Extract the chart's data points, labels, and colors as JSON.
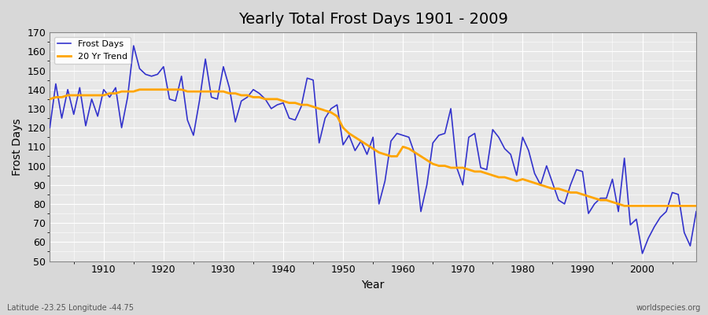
{
  "title": "Yearly Total Frost Days 1901 - 2009",
  "xlabel": "Year",
  "ylabel": "Frost Days",
  "subtitle": "Latitude -23.25 Longitude -44.75",
  "watermark": "worldspecies.org",
  "ylim": [
    50,
    170
  ],
  "yticks": [
    50,
    60,
    70,
    80,
    90,
    100,
    110,
    120,
    130,
    140,
    150,
    160,
    170
  ],
  "frost_color": "#3333cc",
  "trend_color": "#FFA500",
  "bg_color": "#d8d8d8",
  "plot_bg_color": "#e8e8e8",
  "grid_color": "#ffffff",
  "years": [
    1901,
    1902,
    1903,
    1904,
    1905,
    1906,
    1907,
    1908,
    1909,
    1910,
    1911,
    1912,
    1913,
    1914,
    1915,
    1916,
    1917,
    1918,
    1919,
    1920,
    1921,
    1922,
    1923,
    1924,
    1925,
    1926,
    1927,
    1928,
    1929,
    1930,
    1931,
    1932,
    1933,
    1934,
    1935,
    1936,
    1937,
    1938,
    1939,
    1940,
    1941,
    1942,
    1943,
    1944,
    1945,
    1946,
    1947,
    1948,
    1949,
    1950,
    1951,
    1952,
    1953,
    1954,
    1955,
    1956,
    1957,
    1958,
    1959,
    1960,
    1961,
    1962,
    1963,
    1964,
    1965,
    1966,
    1967,
    1968,
    1969,
    1970,
    1971,
    1972,
    1973,
    1974,
    1975,
    1976,
    1977,
    1978,
    1979,
    1980,
    1981,
    1982,
    1983,
    1984,
    1985,
    1986,
    1987,
    1988,
    1989,
    1990,
    1991,
    1992,
    1993,
    1994,
    1995,
    1996,
    1997,
    1998,
    1999,
    2000,
    2001,
    2002,
    2003,
    2004,
    2005,
    2006,
    2007,
    2008,
    2009
  ],
  "frost_days": [
    120,
    143,
    125,
    140,
    127,
    141,
    121,
    135,
    126,
    140,
    136,
    141,
    120,
    136,
    163,
    151,
    148,
    147,
    148,
    152,
    135,
    134,
    147,
    124,
    116,
    134,
    156,
    136,
    135,
    152,
    141,
    123,
    134,
    136,
    140,
    138,
    135,
    130,
    132,
    133,
    125,
    124,
    131,
    146,
    145,
    112,
    125,
    130,
    132,
    111,
    116,
    108,
    113,
    106,
    115,
    80,
    92,
    113,
    117,
    116,
    115,
    106,
    76,
    90,
    112,
    116,
    117,
    130,
    99,
    90,
    115,
    117,
    99,
    98,
    119,
    115,
    109,
    106,
    95,
    115,
    108,
    96,
    90,
    100,
    91,
    82,
    80,
    90,
    98,
    97,
    75,
    80,
    83,
    83,
    93,
    76,
    104,
    69,
    72,
    54,
    62,
    68,
    73,
    76,
    86,
    85,
    65,
    58,
    76
  ],
  "trend_years": [
    1901,
    1902,
    1903,
    1904,
    1905,
    1906,
    1907,
    1908,
    1909,
    1910,
    1911,
    1912,
    1913,
    1914,
    1915,
    1916,
    1917,
    1918,
    1919,
    1920,
    1921,
    1922,
    1923,
    1924,
    1925,
    1926,
    1927,
    1928,
    1929,
    1930,
    1931,
    1932,
    1933,
    1934,
    1935,
    1936,
    1937,
    1938,
    1939,
    1940,
    1941,
    1942,
    1943,
    1944,
    1945,
    1946,
    1947,
    1948,
    1949,
    1950,
    1951,
    1952,
    1953,
    1954,
    1955,
    1956,
    1957,
    1958,
    1959,
    1960,
    1961,
    1962,
    1963,
    1964,
    1965,
    1966,
    1967,
    1968,
    1969,
    1970,
    1971,
    1972,
    1973,
    1974,
    1975,
    1976,
    1977,
    1978,
    1979,
    1980,
    1981,
    1982,
    1983,
    1984,
    1985,
    1986,
    1987,
    1988,
    1989,
    1990,
    1991,
    1992,
    1993,
    1994,
    1995,
    1996,
    1997,
    1998,
    1999,
    2000,
    2001,
    2002,
    2003,
    2004,
    2005,
    2006,
    2007,
    2008,
    2009
  ],
  "trend_values": [
    135,
    136,
    136,
    137,
    137,
    137,
    137,
    137,
    137,
    137,
    138,
    138,
    139,
    139,
    139,
    140,
    140,
    140,
    140,
    140,
    140,
    140,
    140,
    139,
    139,
    139,
    139,
    139,
    139,
    139,
    138,
    138,
    137,
    137,
    136,
    136,
    135,
    135,
    135,
    134,
    133,
    133,
    132,
    132,
    131,
    130,
    129,
    128,
    126,
    120,
    117,
    115,
    113,
    111,
    109,
    107,
    106,
    105,
    105,
    110,
    109,
    107,
    105,
    103,
    101,
    100,
    100,
    99,
    99,
    99,
    98,
    97,
    97,
    96,
    95,
    94,
    94,
    93,
    92,
    93,
    92,
    91,
    90,
    89,
    88,
    88,
    87,
    86,
    86,
    85,
    84,
    83,
    82,
    82,
    81,
    80,
    79,
    79,
    79,
    79,
    79,
    79,
    79,
    79,
    79,
    79,
    79,
    79,
    79
  ]
}
